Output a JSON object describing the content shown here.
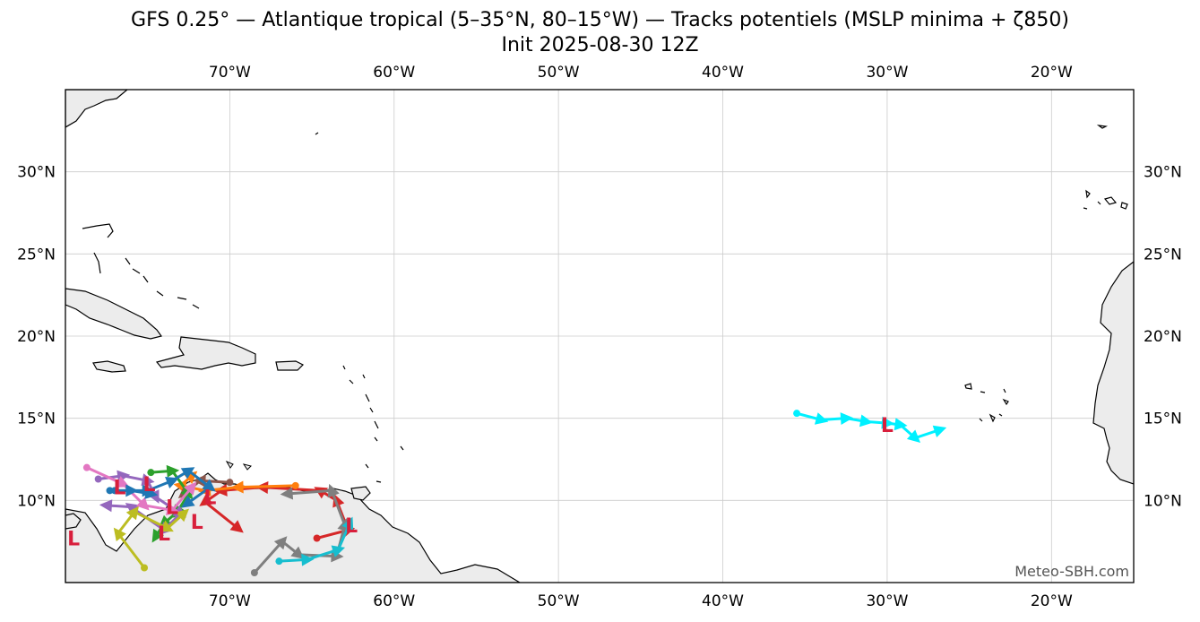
{
  "title": {
    "line1": "GFS 0.25° — Atlantique tropical (5–35°N, 80–15°W) — Tracks potentiels (MSLP minima + ζ850)",
    "line2": "Init 2025-08-30 12Z"
  },
  "map": {
    "lon_range": [
      -80,
      -15
    ],
    "lat_range": [
      5,
      35
    ],
    "lon_ticks": [
      {
        "value": -70,
        "label": "70°W"
      },
      {
        "value": -60,
        "label": "60°W"
      },
      {
        "value": -50,
        "label": "50°W"
      },
      {
        "value": -40,
        "label": "40°W"
      },
      {
        "value": -30,
        "label": "30°W"
      },
      {
        "value": -20,
        "label": "20°W"
      }
    ],
    "lat_ticks": [
      {
        "value": 30,
        "label": "30°N"
      },
      {
        "value": 25,
        "label": "25°N"
      },
      {
        "value": 20,
        "label": "20°N"
      },
      {
        "value": 15,
        "label": "15°N"
      },
      {
        "value": 10,
        "label": "10°N"
      }
    ],
    "land_color": "#ececec",
    "credit": "Meteo-SBH.com"
  },
  "low_centers": [
    {
      "label": "L",
      "lon": -30.0,
      "lat": 14.6
    },
    {
      "label": "L",
      "lon": -76.7,
      "lat": 10.8
    },
    {
      "label": "L",
      "lon": -74.9,
      "lat": 11.0
    },
    {
      "label": "L",
      "lon": -73.5,
      "lat": 9.6
    },
    {
      "label": "L",
      "lon": -71.2,
      "lat": 10.2
    },
    {
      "label": "L",
      "lon": -72.0,
      "lat": 8.7
    },
    {
      "label": "L",
      "lon": -74.0,
      "lat": 8.0
    },
    {
      "label": "L",
      "lon": -79.5,
      "lat": 7.7
    },
    {
      "label": "L",
      "lon": -62.6,
      "lat": 8.5
    }
  ],
  "tracks": [
    {
      "name": "cyan-east",
      "color": "#00f0ff",
      "points": [
        [
          -35.5,
          15.3
        ],
        [
          -34.0,
          14.9
        ],
        [
          -32.5,
          15.0
        ],
        [
          -31.3,
          14.8
        ],
        [
          -30.0,
          14.7
        ],
        [
          -29.2,
          14.6
        ],
        [
          -28.3,
          13.8
        ],
        [
          -26.8,
          14.3
        ]
      ]
    },
    {
      "name": "red",
      "color": "#d62728",
      "points": [
        [
          -64.7,
          7.7
        ],
        [
          -62.8,
          8.2
        ],
        [
          -63.5,
          10.0
        ],
        [
          -64.5,
          10.6
        ],
        [
          -68.0,
          10.8
        ],
        [
          -70.5,
          10.6
        ],
        [
          -71.5,
          9.9
        ],
        [
          -69.5,
          8.3
        ]
      ]
    },
    {
      "name": "gray",
      "color": "#7f7f7f",
      "points": [
        [
          -68.5,
          5.6
        ],
        [
          -66.8,
          7.5
        ],
        [
          -65.8,
          6.7
        ],
        [
          -63.5,
          6.6
        ],
        [
          -63.0,
          8.5
        ],
        [
          -63.8,
          10.6
        ],
        [
          -66.5,
          10.4
        ]
      ]
    },
    {
      "name": "teal",
      "color": "#17becf",
      "points": [
        [
          -67.0,
          6.3
        ],
        [
          -65.3,
          6.4
        ],
        [
          -63.4,
          7.0
        ],
        [
          -62.7,
          8.6
        ]
      ]
    },
    {
      "name": "orange",
      "color": "#ff7f0e",
      "points": [
        [
          -66.0,
          10.9
        ],
        [
          -69.5,
          10.8
        ],
        [
          -71.5,
          10.6
        ],
        [
          -73.0,
          10.9
        ],
        [
          -72.3,
          11.5
        ]
      ]
    },
    {
      "name": "brown",
      "color": "#8c564b",
      "points": [
        [
          -70.0,
          11.1
        ],
        [
          -71.8,
          11.2
        ],
        [
          -72.8,
          10.4
        ]
      ]
    },
    {
      "name": "green",
      "color": "#2ca02c",
      "points": [
        [
          -74.8,
          11.7
        ],
        [
          -73.5,
          11.8
        ],
        [
          -72.5,
          10.4
        ],
        [
          -73.2,
          9.3
        ],
        [
          -74.0,
          8.6
        ],
        [
          -74.5,
          7.8
        ]
      ]
    },
    {
      "name": "blue",
      "color": "#1f77b4",
      "points": [
        [
          -77.0,
          10.6
        ],
        [
          -75.0,
          10.6
        ],
        [
          -73.5,
          11.2
        ],
        [
          -72.5,
          11.8
        ],
        [
          -71.2,
          10.8
        ],
        [
          -72.6,
          9.8
        ]
      ]
    },
    {
      "name": "purple",
      "color": "#9467bd",
      "points": [
        [
          -78.0,
          11.3
        ],
        [
          -76.5,
          11.5
        ],
        [
          -75.0,
          11.2
        ],
        [
          -74.5,
          10.2
        ],
        [
          -73.0,
          9.2
        ],
        [
          -74.0,
          8.2
        ],
        [
          -76.0,
          9.6
        ],
        [
          -77.5,
          9.7
        ]
      ]
    },
    {
      "name": "pink",
      "color": "#e377c2",
      "points": [
        [
          -78.7,
          12.0
        ],
        [
          -76.5,
          11.0
        ],
        [
          -75.2,
          9.7
        ],
        [
          -73.5,
          9.4
        ],
        [
          -72.3,
          10.8
        ]
      ]
    },
    {
      "name": "olive",
      "color": "#bcbd22",
      "points": [
        [
          -75.2,
          5.9
        ],
        [
          -76.8,
          8.0
        ],
        [
          -75.8,
          9.3
        ],
        [
          -73.8,
          8.3
        ],
        [
          -72.8,
          9.2
        ]
      ]
    },
    {
      "name": "dark-blue",
      "color": "#1f77b4",
      "points": [
        [
          -77.3,
          10.6
        ],
        [
          -76.0,
          10.6
        ],
        [
          -74.8,
          10.4
        ]
      ]
    }
  ]
}
